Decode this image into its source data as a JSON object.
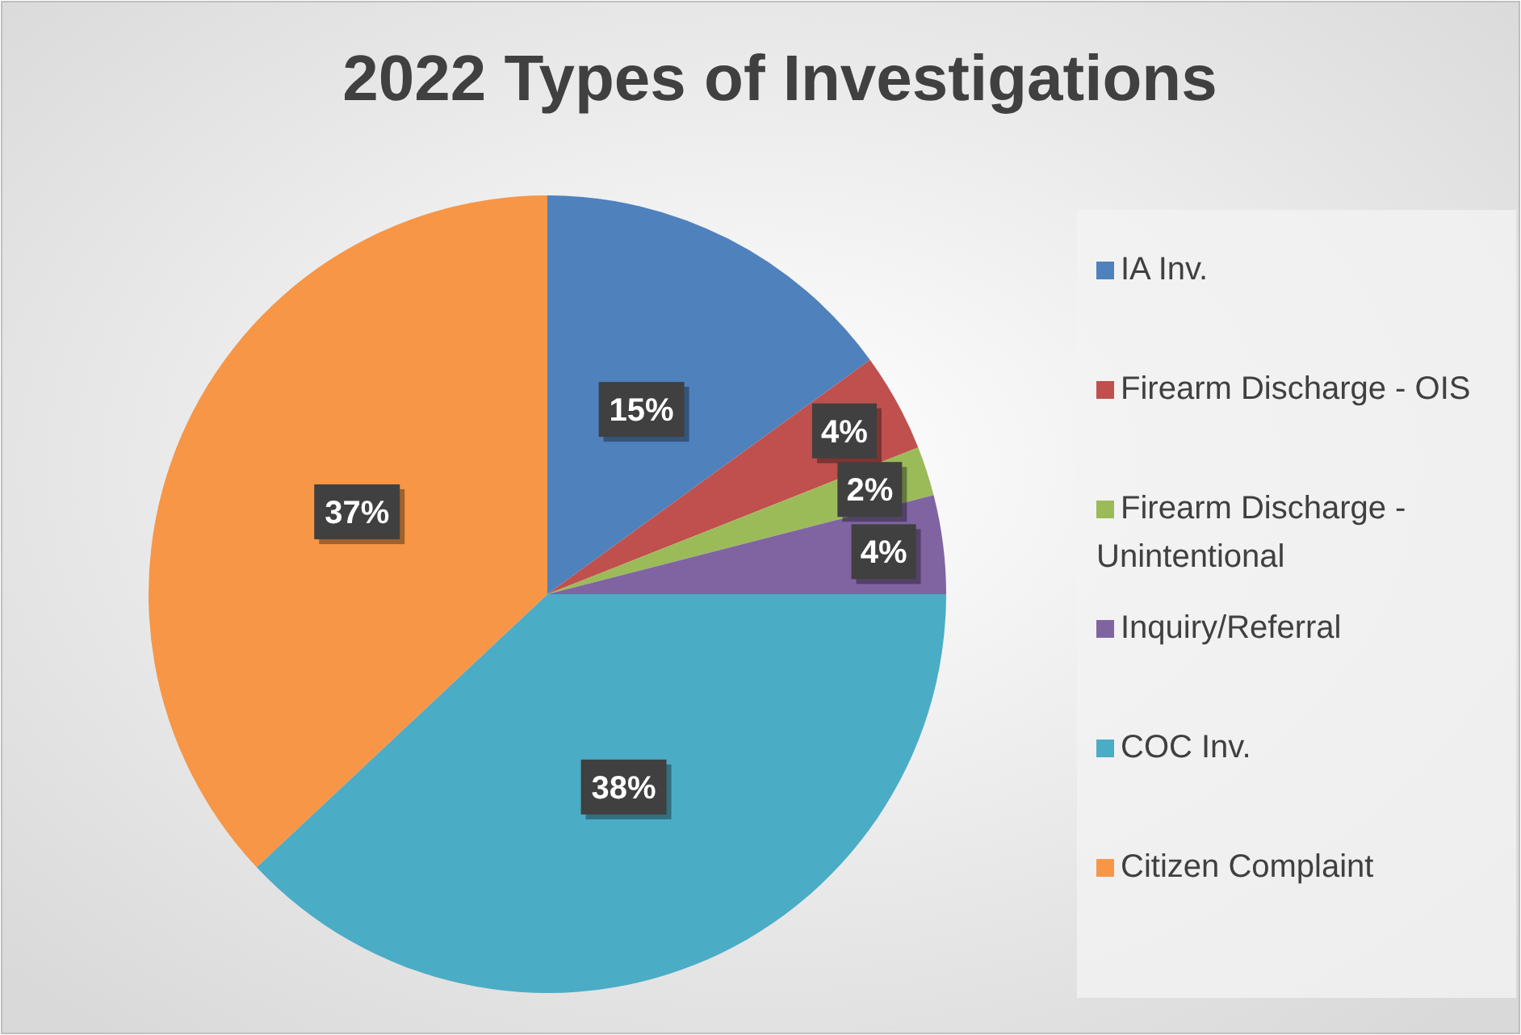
{
  "chart_data": {
    "type": "pie",
    "title": "2022 Types of Investigations",
    "categories": [
      "IA Inv.",
      "Firearm Discharge - OIS",
      "Firearm Discharge - Unintentional",
      "Inquiry/Referral",
      "COC Inv.",
      "Citizen Complaint"
    ],
    "values": [
      15,
      4,
      2,
      4,
      38,
      37
    ],
    "colors": [
      "#4f81bd",
      "#c0504d",
      "#9bbb59",
      "#8064a2",
      "#4bacc6",
      "#f79646"
    ],
    "value_labels": [
      "15%",
      "4%",
      "2%",
      "4%",
      "38%",
      "37%"
    ],
    "legend": "right"
  }
}
